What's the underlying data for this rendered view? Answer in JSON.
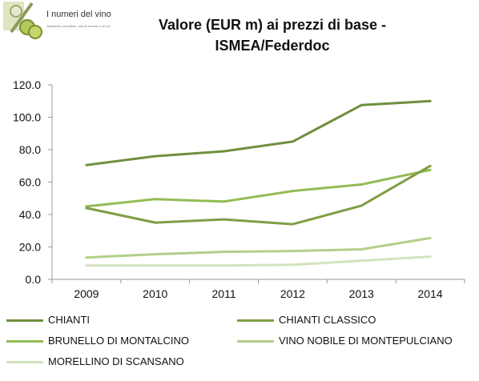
{
  "logo": {
    "text": "I numeri del vino",
    "subtext": "Statistiche produttive, dati di mercato e di consumo."
  },
  "chart_data": {
    "type": "line",
    "title": "Valore (EUR m) ai prezzi di base - ISMEA/Federdoc",
    "x": [
      "2009",
      "2010",
      "2011",
      "2012",
      "2013",
      "2014"
    ],
    "ylim": [
      0,
      120
    ],
    "yticks": [
      "0.0",
      "20.0",
      "40.0",
      "60.0",
      "80.0",
      "100.0",
      "120.0"
    ],
    "grid": false,
    "legend": "bottom",
    "series": [
      {
        "name": "CHIANTI",
        "color": "#6f8f3f",
        "values": [
          70.5,
          76.0,
          79.0,
          85.0,
          107.5,
          110.0
        ]
      },
      {
        "name": "CHIANTI CLASSICO",
        "color": "#7f9e44",
        "values": [
          44.0,
          35.0,
          37.0,
          34.0,
          45.5,
          70.0
        ]
      },
      {
        "name": "BRUNELLO DI MONTALCINO",
        "color": "#93bb55",
        "values": [
          45.0,
          49.5,
          48.0,
          54.5,
          58.5,
          67.5
        ]
      },
      {
        "name": "VINO NOBILE DI MONTEPULCIANO",
        "color": "#b2cf8a",
        "values": [
          13.5,
          15.5,
          17.0,
          17.5,
          18.5,
          25.5
        ]
      },
      {
        "name": "MORELLINO DI SCANSANO",
        "color": "#d3e3bf",
        "values": [
          8.5,
          8.5,
          8.5,
          9.0,
          11.5,
          14.0
        ]
      }
    ]
  }
}
